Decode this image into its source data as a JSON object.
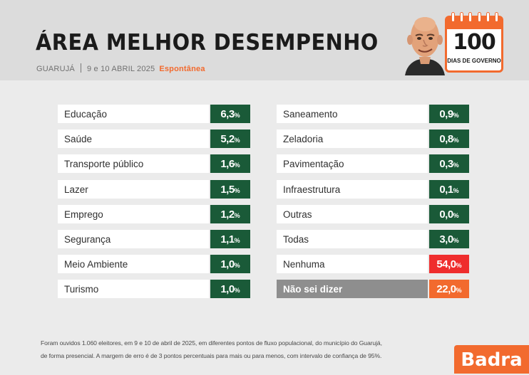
{
  "header": {
    "title": "ÁREA MELHOR DESEMPENHO",
    "city": "GUARUJÁ",
    "date": "9 e 10 ABRIL 2025",
    "type": "Espontânea"
  },
  "badge": {
    "number": "100",
    "label": "DIAS DE GOVERNO"
  },
  "colors": {
    "green": "#1a5a38",
    "red": "#ef2d2d",
    "orange": "#f26a2e",
    "grey_label": "#8e8e8e"
  },
  "chart_data": {
    "type": "table",
    "unit": "%",
    "items": [
      {
        "label": "Educação",
        "value": "6,3",
        "color": "green",
        "label_style": "normal"
      },
      {
        "label": "Saúde",
        "value": "5,2",
        "color": "green",
        "label_style": "normal"
      },
      {
        "label": "Transporte público",
        "value": "1,6",
        "color": "green",
        "label_style": "normal"
      },
      {
        "label": "Lazer",
        "value": "1,5",
        "color": "green",
        "label_style": "normal"
      },
      {
        "label": "Emprego",
        "value": "1,2",
        "color": "green",
        "label_style": "normal"
      },
      {
        "label": "Segurança",
        "value": "1,1",
        "color": "green",
        "label_style": "normal"
      },
      {
        "label": "Meio Ambiente",
        "value": "1,0",
        "color": "green",
        "label_style": "normal"
      },
      {
        "label": "Turismo",
        "value": "1,0",
        "color": "green",
        "label_style": "normal"
      },
      {
        "label": "Saneamento",
        "value": "0,9",
        "color": "green",
        "label_style": "normal"
      },
      {
        "label": "Zeladoria",
        "value": "0,8",
        "color": "green",
        "label_style": "normal"
      },
      {
        "label": "Pavimentação",
        "value": "0,3",
        "color": "green",
        "label_style": "normal"
      },
      {
        "label": "Infraestrutura",
        "value": "0,1",
        "color": "green",
        "label_style": "normal"
      },
      {
        "label": "Outras",
        "value": "0,0",
        "color": "green",
        "label_style": "normal"
      },
      {
        "label": "Todas",
        "value": "3,0",
        "color": "green",
        "label_style": "normal"
      },
      {
        "label": "Nenhuma",
        "value": "54,0",
        "color": "red",
        "label_style": "normal"
      },
      {
        "label": "Não sei dizer",
        "value": "22,0",
        "color": "orange",
        "label_style": "grey"
      }
    ]
  },
  "footnote": {
    "line1": "Foram ouvidos 1.060 eleitores, em 9 e 10 de abril de 2025, em diferentes pontos de fluxo populacional, do município do Guarujá,",
    "line2": "de forma presencial. A margem de erro é de 3 pontos percentuais para mais ou para menos, com intervalo de confiança de 95%."
  },
  "logo": {
    "text": "Badra"
  }
}
